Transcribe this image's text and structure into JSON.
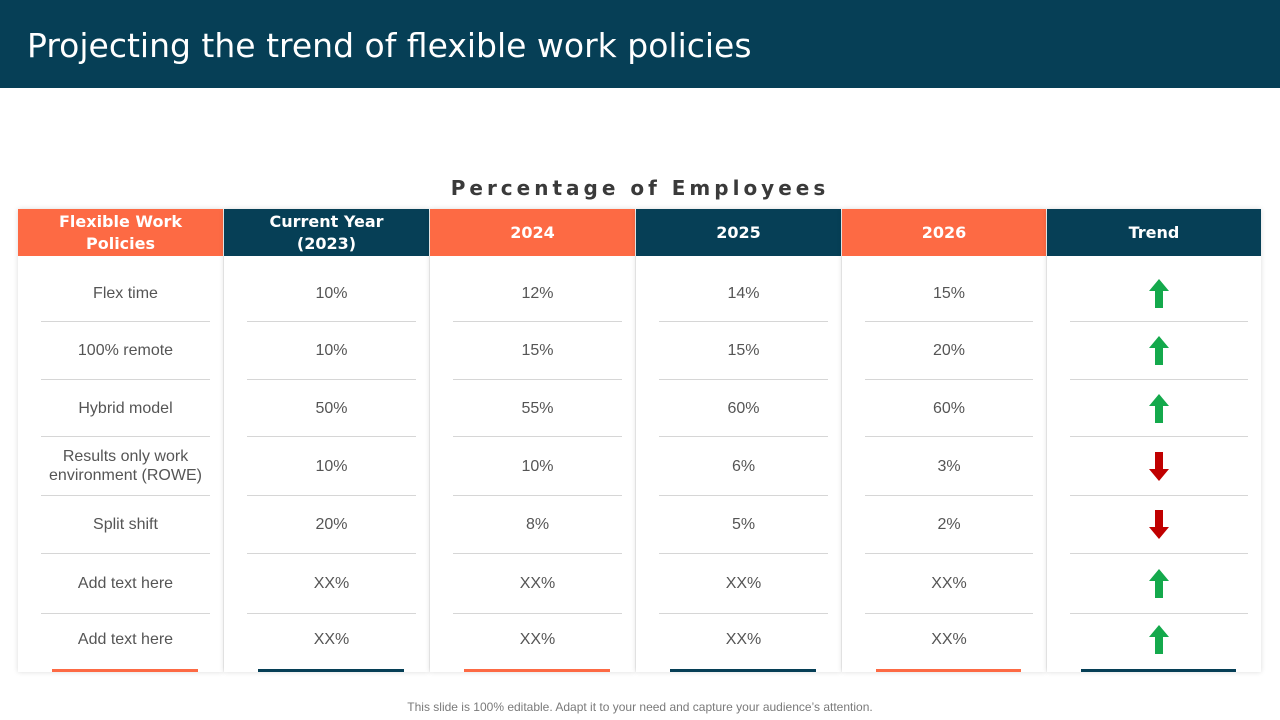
{
  "header": {
    "title": "Projecting the trend of flexible work policies"
  },
  "table": {
    "caption": "Percentage of Employees",
    "columns": [
      "Flexible Work Policies",
      "Current Year (2023)",
      "2024",
      "2025",
      "2026",
      "Trend"
    ],
    "rows": [
      {
        "policy": "Flex time",
        "y2023": "10%",
        "y2024": "12%",
        "y2025": "14%",
        "y2026": "15%",
        "trend": "up"
      },
      {
        "policy": "100% remote",
        "y2023": "10%",
        "y2024": "15%",
        "y2025": "15%",
        "y2026": "20%",
        "trend": "up"
      },
      {
        "policy": "Hybrid model",
        "y2023": "50%",
        "y2024": "55%",
        "y2025": "60%",
        "y2026": "60%",
        "trend": "up"
      },
      {
        "policy": "Results  only  work environment  (ROWE)",
        "y2023": "10%",
        "y2024": "10%",
        "y2025": "6%",
        "y2026": "3%",
        "trend": "down"
      },
      {
        "policy": "Split shift",
        "y2023": "20%",
        "y2024": "8%",
        "y2025": "5%",
        "y2026": "2%",
        "trend": "down"
      },
      {
        "policy": "Add text here",
        "y2023": "XX%",
        "y2024": "XX%",
        "y2025": "XX%",
        "y2026": "XX%",
        "trend": "up"
      },
      {
        "policy": "Add text here",
        "y2023": "XX%",
        "y2024": "XX%",
        "y2025": "XX%",
        "y2026": "XX%",
        "trend": "up"
      }
    ],
    "trend_icons": {
      "up": "arrow-up-icon",
      "down": "arrow-down-icon"
    },
    "colors": {
      "orange": "#fd6a44",
      "navy": "#063f56",
      "up": "#14a94c",
      "down": "#c00000"
    }
  },
  "footer": {
    "note": "This slide is 100% editable. Adapt it to your need and capture your audience’s attention."
  }
}
